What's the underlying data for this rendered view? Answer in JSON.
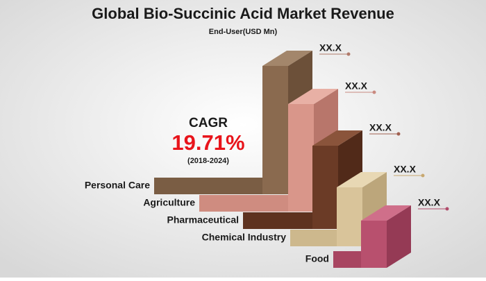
{
  "title": "Global Bio-Succinic Acid Market Revenue",
  "subtitle": "End-User(USD Mn)",
  "cagr": {
    "label": "CAGR",
    "value": "19.71%",
    "period": "(2018-2024)"
  },
  "segments": [
    {
      "label": "Personal Care",
      "value_label": "XX.X"
    },
    {
      "label": "Agriculture",
      "value_label": "XX.X"
    },
    {
      "label": "Pharmaceutical",
      "value_label": "XX.X"
    },
    {
      "label": "Chemical Industry",
      "value_label": "XX.X"
    },
    {
      "label": "Food",
      "value_label": "XX.X"
    }
  ]
}
